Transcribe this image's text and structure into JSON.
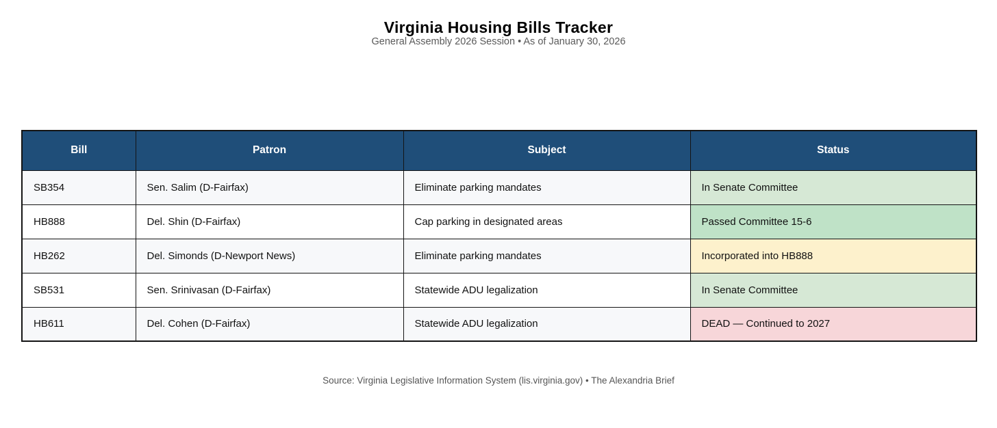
{
  "header": {
    "title": "Virginia Housing Bills Tracker",
    "subtitle": "General Assembly 2026 Session • As of January 30, 2026"
  },
  "chart_data": {
    "type": "table",
    "title": "Virginia Housing Bills Tracker",
    "subtitle": "General Assembly 2026 Session • As of January 30, 2026",
    "columns": [
      "Bill",
      "Patron",
      "Subject",
      "Status"
    ],
    "rows": [
      {
        "bill": "SB354",
        "patron": "Sen. Salim (D-Fairfax)",
        "subject": "Eliminate parking mandates",
        "status": "In Senate Committee",
        "status_color": "#d6e8d5"
      },
      {
        "bill": "HB888",
        "patron": "Del. Shin (D-Fairfax)",
        "subject": "Cap parking in designated areas",
        "status": "Passed Committee 15-6",
        "status_color": "#bfe2c7"
      },
      {
        "bill": "HB262",
        "patron": "Del. Simonds (D-Newport News)",
        "subject": "Eliminate parking mandates",
        "status": "Incorporated into HB888",
        "status_color": "#fdf1cc"
      },
      {
        "bill": "SB531",
        "patron": "Sen. Srinivasan (D-Fairfax)",
        "subject": "Statewide ADU legalization",
        "status": "In Senate Committee",
        "status_color": "#d6e8d5"
      },
      {
        "bill": "HB611",
        "patron": "Del. Cohen (D-Fairfax)",
        "subject": "Statewide ADU legalization",
        "status": "DEAD — Continued to 2027",
        "status_color": "#f7d6d9"
      }
    ],
    "colors": {
      "header_bg": "#1f4e79",
      "header_text": "#ffffff",
      "row_alt_bg": "#f7f8fa",
      "border": "#141414",
      "status_green_light": "#d6e8d5",
      "status_green": "#bfe2c7",
      "status_yellow": "#fdf1cc",
      "status_red": "#f7d6d9"
    },
    "source": "Source: Virginia Legislative Information System (lis.virginia.gov) • The Alexandria Brief"
  },
  "footer": {
    "source": "Source: Virginia Legislative Information System (lis.virginia.gov) • The Alexandria Brief"
  }
}
